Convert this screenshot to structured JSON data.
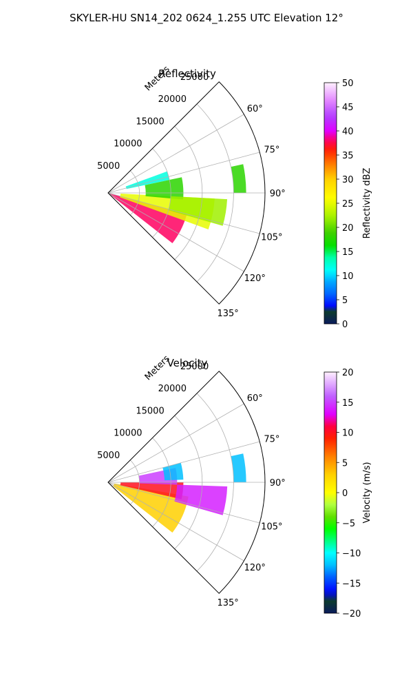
{
  "figure": {
    "title": "SKYLER-HU  SN14_202  0624_1.255 UTC Elevation 12°"
  },
  "chart_data": [
    {
      "type": "heatmap",
      "subtype": "polar-sector-ppi",
      "title": "Reflectivity",
      "radial_axis_label": "Meters",
      "radial_ticks": [
        5000,
        10000,
        15000,
        20000,
        25000
      ],
      "radial_range": [
        0,
        25000
      ],
      "angle_range_deg": [
        45,
        135
      ],
      "angle_ticks": [
        "60°",
        "75°",
        "90°",
        "105°",
        "120°",
        "135°"
      ],
      "angle_tick_values": [
        60,
        75,
        90,
        105,
        120,
        135
      ],
      "grid": true,
      "colorbar": {
        "label": "Reflectivity dBZ",
        "range": [
          0,
          50
        ],
        "ticks": [
          "0",
          "5",
          "10",
          "15",
          "20",
          "25",
          "30",
          "35",
          "40",
          "45",
          "50"
        ],
        "tick_values": [
          0,
          5,
          10,
          15,
          20,
          25,
          30,
          35,
          40,
          45,
          50
        ]
      },
      "echo_regions": [
        {
          "az": [
            105,
            128
          ],
          "r": [
            0,
            13000
          ],
          "value": 38
        },
        {
          "az": [
            93,
            110
          ],
          "r": [
            2000,
            17000
          ],
          "value": 25
        },
        {
          "az": [
            78,
            95
          ],
          "r": [
            6000,
            12000
          ],
          "value": 18
        },
        {
          "az": [
            70,
            78
          ],
          "r": [
            3000,
            10000
          ],
          "value": 12
        },
        {
          "az": [
            93,
            106
          ],
          "r": [
            10000,
            19000
          ],
          "value": 22
        },
        {
          "az": [
            78,
            90
          ],
          "r": [
            20000,
            22000
          ],
          "value": 18
        }
      ]
    },
    {
      "type": "heatmap",
      "subtype": "polar-sector-ppi",
      "title": "Velocity",
      "radial_axis_label": "Meters",
      "radial_ticks": [
        5000,
        10000,
        15000,
        20000,
        25000
      ],
      "radial_range": [
        0,
        25000
      ],
      "angle_range_deg": [
        45,
        135
      ],
      "angle_ticks": [
        "60°",
        "75°",
        "90°",
        "105°",
        "120°",
        "135°"
      ],
      "angle_tick_values": [
        60,
        75,
        90,
        105,
        120,
        135
      ],
      "grid": true,
      "colorbar": {
        "label": "Velocity (m/s)",
        "range": [
          -20,
          20
        ],
        "ticks": [
          "−20",
          "−15",
          "−10",
          "−5",
          "0",
          "5",
          "10",
          "15",
          "20"
        ],
        "tick_values": [
          -20,
          -15,
          -10,
          -5,
          0,
          5,
          10,
          15,
          20
        ]
      },
      "echo_regions": [
        {
          "az": [
            100,
            128
          ],
          "r": [
            1000,
            13000
          ],
          "value": 3
        },
        {
          "az": [
            90,
            103
          ],
          "r": [
            2000,
            12000
          ],
          "value": 10
        },
        {
          "az": [
            78,
            92
          ],
          "r": [
            5000,
            11000
          ],
          "value": 15
        },
        {
          "az": [
            92,
            106
          ],
          "r": [
            11000,
            19000
          ],
          "value": 14
        },
        {
          "az": [
            75,
            88
          ],
          "r": [
            9000,
            12000
          ],
          "value": -12
        },
        {
          "az": [
            78,
            90
          ],
          "r": [
            20000,
            22000
          ],
          "value": -12
        }
      ]
    }
  ]
}
